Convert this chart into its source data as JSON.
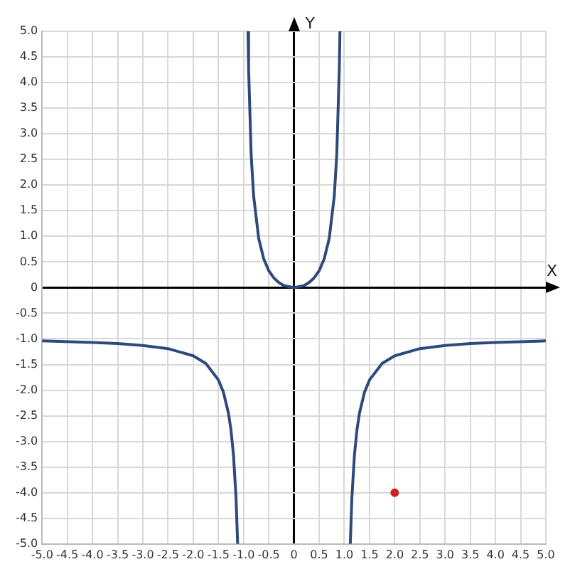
{
  "chart_data": {
    "type": "line",
    "xlabel": "X",
    "ylabel": "Y",
    "series": [
      {
        "color": "#2e4a7d",
        "x": [
          -5,
          -4,
          -3.5,
          -3,
          -2.5,
          -2,
          -1.75,
          -1.5,
          -1.4,
          -1.3,
          -1.25,
          -1.2,
          -1.15,
          -1.118
        ],
        "values": [
          -1.04,
          -1.07,
          -1.09,
          -1.13,
          -1.19,
          -1.33,
          -1.48,
          -1.8,
          -2.04,
          -2.45,
          -2.78,
          -3.27,
          -4.1,
          -5.0
        ]
      },
      {
        "color": "#2e4a7d",
        "x": [
          -0.913,
          -0.9,
          -0.85,
          -0.8,
          -0.7,
          -0.6,
          -0.5,
          -0.4,
          -0.3,
          -0.2,
          0,
          0.2,
          0.3,
          0.4,
          0.5,
          0.6,
          0.7,
          0.8,
          0.85,
          0.9,
          0.913
        ],
        "values": [
          5.0,
          4.26,
          2.6,
          1.78,
          0.96,
          0.56,
          0.33,
          0.19,
          0.1,
          0.04,
          0,
          0.04,
          0.1,
          0.19,
          0.33,
          0.56,
          0.96,
          1.78,
          2.6,
          4.26,
          5.0
        ]
      },
      {
        "color": "#2e4a7d",
        "x": [
          1.118,
          1.15,
          1.2,
          1.25,
          1.3,
          1.4,
          1.5,
          1.75,
          2,
          2.5,
          3,
          3.5,
          4,
          5
        ],
        "values": [
          -5.0,
          -4.1,
          -3.27,
          -2.78,
          -2.45,
          -2.04,
          -1.8,
          -1.48,
          -1.33,
          -1.19,
          -1.13,
          -1.09,
          -1.07,
          -1.04
        ]
      },
      {
        "type": "scatter",
        "color": "#cc2222",
        "x": [
          2.0
        ],
        "values": [
          -4.0
        ]
      }
    ],
    "xlim": [
      -5,
      5
    ],
    "ylim": [
      -5,
      5
    ],
    "xticks": [
      {
        "value": -5,
        "label": "-5.0"
      },
      {
        "value": -4.5,
        "label": "-4.5"
      },
      {
        "value": -4,
        "label": "-4.0"
      },
      {
        "value": -3.5,
        "label": "-3.5"
      },
      {
        "value": -3,
        "label": "-3.0"
      },
      {
        "value": -2.5,
        "label": "-2.5"
      },
      {
        "value": -2,
        "label": "-2.0"
      },
      {
        "value": -1.5,
        "label": "-1.5"
      },
      {
        "value": -1,
        "label": "-1.0"
      },
      {
        "value": -0.5,
        "label": "-0.5"
      },
      {
        "value": 0,
        "label": "0"
      },
      {
        "value": 0.5,
        "label": "0.5"
      },
      {
        "value": 1,
        "label": "1.0"
      },
      {
        "value": 1.5,
        "label": "1.5"
      },
      {
        "value": 2,
        "label": "2.0"
      },
      {
        "value": 2.5,
        "label": "2.5"
      },
      {
        "value": 3,
        "label": "3.0"
      },
      {
        "value": 3.5,
        "label": "3.5"
      },
      {
        "value": 4,
        "label": "4.0"
      },
      {
        "value": 4.5,
        "label": "4.5"
      },
      {
        "value": 5,
        "label": "5.0"
      }
    ],
    "yticks": [
      {
        "value": -5,
        "label": "-5.0"
      },
      {
        "value": -4.5,
        "label": "-4.5"
      },
      {
        "value": -4,
        "label": "-4.0"
      },
      {
        "value": -3.5,
        "label": "-3.5"
      },
      {
        "value": -3,
        "label": "-3.0"
      },
      {
        "value": -2.5,
        "label": "-2.5"
      },
      {
        "value": -2,
        "label": "-2.0"
      },
      {
        "value": -1.5,
        "label": "-1.5"
      },
      {
        "value": -1,
        "label": "-1.0"
      },
      {
        "value": -0.5,
        "label": "-0.5"
      },
      {
        "value": 0,
        "label": "0"
      },
      {
        "value": 0.5,
        "label": "0.5"
      },
      {
        "value": 1,
        "label": "1.0"
      },
      {
        "value": 1.5,
        "label": "1.5"
      },
      {
        "value": 2,
        "label": "2.0"
      },
      {
        "value": 2.5,
        "label": "2.5"
      },
      {
        "value": 3,
        "label": "3.0"
      },
      {
        "value": 3.5,
        "label": "3.5"
      },
      {
        "value": 4,
        "label": "4.0"
      },
      {
        "value": 4.5,
        "label": "4.5"
      },
      {
        "value": 5,
        "label": "5.0"
      }
    ],
    "grid": true
  }
}
